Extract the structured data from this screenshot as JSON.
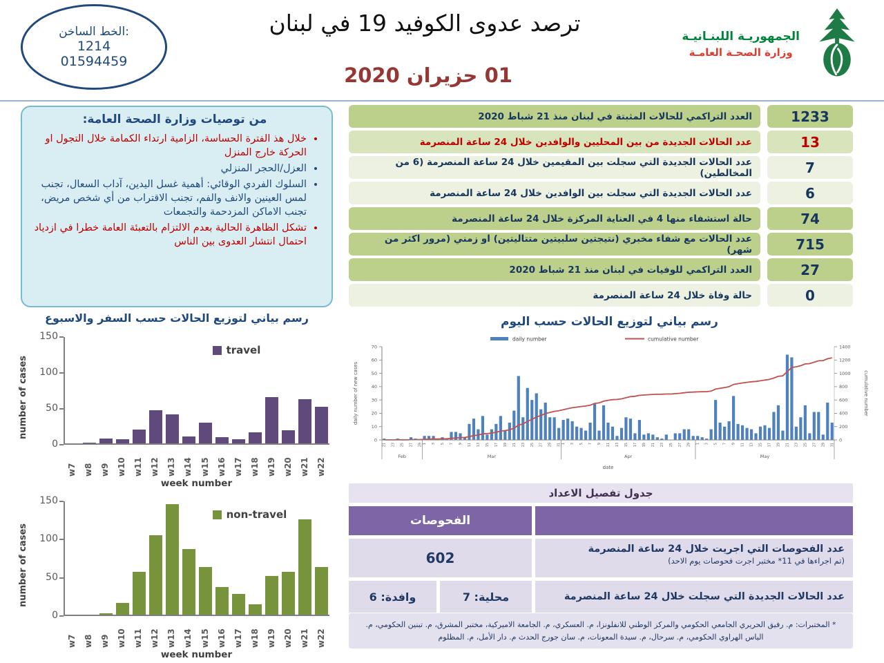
{
  "header": {
    "hotline": {
      "label": "الخط الساخن:",
      "num1": "1214",
      "num2": "01594459"
    },
    "title": "ترصد عدوى الكوفيد 19 في لبنان",
    "date": "01 حزيران 2020",
    "ministry": {
      "line1": "الجمهوريـة اللبنـانيـة",
      "line2": "وزارة الصحـة العامـة"
    }
  },
  "recommendations": {
    "title": "من توصيات وزارة الصحة العامة:",
    "items": [
      {
        "text": "خلال هذ الفترة الحساسة، الزامية ارتداء الكمامة خلال التجول او الحركة خارج المنزل",
        "tone": "red"
      },
      {
        "text": "العزل/الحجر المنزلي",
        "tone": "blue"
      },
      {
        "text": "السلوك الفردي الوقائي: أهمية غسل اليدين، آداب السعال، تجنب لمس العينين والانف والفم، تجنب الاقتراب من أي شخص مريض، تجنب الاماكن المزدحمة والتجمعات",
        "tone": "blue"
      },
      {
        "text": "تشكل الظاهرة الحالية بعدم الالتزام بالتعبئة العامة خطرا في ازدياد احتمال انتشار العدوى بين الناس",
        "tone": "red"
      }
    ]
  },
  "stats": {
    "rows": [
      {
        "label": "العدد التراكمي للحالات المثبتة في لبنان منذ 21 شباط 2020",
        "value": "1233",
        "shade": "dark",
        "tone": "navy"
      },
      {
        "label": "عدد الحالات الجديدة من بين المحليين والوافدين خلال 24 ساعة المنصرمة",
        "value": "13",
        "shade": "mid",
        "tone": "red"
      },
      {
        "label": "عدد الحالات الجديدة التي سجلت بين المقيمين خلال 24 ساعة المنصرمة (6 من المخالطين)",
        "value": "7",
        "shade": "pale",
        "tone": "navy"
      },
      {
        "label": "عدد الحالات الجديدة التي سجلت بين الوافدين خلال 24 ساعة المنصرمة",
        "value": "6",
        "shade": "pale",
        "tone": "navy"
      },
      {
        "label": "حالة استشفاء منها 4 في العناية المركزة خلال 24 ساعة المنصرمة",
        "value": "74",
        "shade": "dark",
        "tone": "navy"
      },
      {
        "label": "عدد الحالات مع شفاء مخبري (نتيجتين سلبيتين متتاليتين) او زمني (مرور اكثر من شهر)",
        "value": "715",
        "shade": "dark",
        "tone": "navy"
      },
      {
        "label": "العدد التراكمي للوفيات في لبنان منذ 21 شباط 2020",
        "value": "27",
        "shade": "dark",
        "tone": "navy"
      },
      {
        "label": "حالة وفاة خلال 24 ساعة المنصرمة",
        "value": "0",
        "shade": "pale",
        "tone": "navy"
      }
    ]
  },
  "tests_table": {
    "title": "جدول تفصيل الاعداد",
    "header": "الفحوصات",
    "row1": {
      "value": "602",
      "label": "عدد الفحوصات التي اجريت خلال 24 ساعة المنصرمة",
      "sub": "(تم اجراءها في 11* مختبر اجرت فحوصات يوم الاحد)"
    },
    "row2": {
      "arrival": "وافدة: 6",
      "local": "محلية: 7",
      "label": "عدد الحالات الجديدة التي سجلت خلال 24 ساعة المنصرمة"
    }
  },
  "footnote": "* المختبرات: م. رفيق الحريري الجامعي الحكومي والمركز الوطني للانفلونزا، م. العسكري، م. الجامعة الاميركية، مختبر المشرق، م. تبنين الحكومي، م. الياس الهراوي الحكومي، م. سرحال، م. سيدة المعونات، م. سان جورج الحدث م. دار الأمل، م. المظلوم",
  "colors": {
    "brand_green": "#00843D",
    "brand_red": "#E03C31",
    "date_red": "#953735",
    "navy": "#1F497D",
    "travel_purple": "#604A7B",
    "non_travel_green": "#77933C",
    "daily_blue": "#4F81BD",
    "cumulative_red": "#C0504D",
    "row_dark_green": "#BCD08C",
    "row_mid_green": "#D7E4BC",
    "row_pale_green": "#ECF1E1",
    "table_purple": "#7E66A6",
    "table_lavender": "#DFDBEA"
  },
  "chart_data": [
    {
      "type": "bar",
      "title": "رسم بياني لتوزيع الحالات حسب السفر والاسبوع",
      "legend": "travel",
      "color": "#604A7B",
      "categories": [
        "w7",
        "w8",
        "w9",
        "w10",
        "w11",
        "w12",
        "w13",
        "w14",
        "w15",
        "w16",
        "w17",
        "w18",
        "w19",
        "w20",
        "w21",
        "w22"
      ],
      "values": [
        0,
        1,
        7,
        6,
        19,
        46,
        40,
        10,
        29,
        9,
        6,
        15,
        64,
        18,
        62,
        51
      ],
      "xlabel": "week number",
      "ylabel": "number of cases",
      "ylim": [
        0,
        150
      ],
      "yticks": [
        0,
        50,
        100,
        150
      ]
    },
    {
      "type": "bar",
      "title": "",
      "legend": "non-travel",
      "color": "#77933C",
      "categories": [
        "w7",
        "w8",
        "w9",
        "w10",
        "w11",
        "w12",
        "w13",
        "w14",
        "w15",
        "w16",
        "w17",
        "w18",
        "w19",
        "w20",
        "w21",
        "w22"
      ],
      "values": [
        0,
        0,
        2,
        15,
        56,
        104,
        145,
        86,
        62,
        36,
        27,
        14,
        51,
        56,
        125,
        62
      ],
      "xlabel": "week number",
      "ylabel": "number of cases",
      "ylim": [
        0,
        150
      ],
      "yticks": [
        0,
        50,
        100,
        150
      ]
    },
    {
      "type": "bar+line",
      "title": "رسم بياني لتوزيع الحالات حسب اليوم",
      "legend": [
        "daily number",
        "cumulative number"
      ],
      "bar_color": "#4F81BD",
      "line_color": "#C0504D",
      "xlabel": "date",
      "ylabel_left": "daily number of new cases",
      "ylabel_right": "cumulative number",
      "ylim_left": [
        0,
        70
      ],
      "ylim_right": [
        0,
        1400
      ],
      "months": [
        {
          "label": "Feb",
          "start_day": 21,
          "days": 9
        },
        {
          "label": "Mar",
          "start_day": 1,
          "days": 31
        },
        {
          "label": "Apr",
          "start_day": 1,
          "days": 30
        },
        {
          "label": "May",
          "start_day": 1,
          "days": 31
        }
      ],
      "daily_values": [
        1,
        0,
        0,
        1,
        0,
        0,
        2,
        1,
        0,
        3,
        3,
        3,
        1,
        2,
        1,
        6,
        6,
        5,
        2,
        12,
        16,
        8,
        18,
        4,
        8,
        12,
        18,
        7,
        13,
        22,
        48,
        17,
        39,
        30,
        35,
        23,
        28,
        17,
        17,
        9,
        15,
        16,
        14,
        10,
        9,
        7,
        13,
        27,
        7,
        26,
        13,
        10,
        3,
        9,
        17,
        16,
        5,
        15,
        4,
        5,
        4,
        2,
        1,
        4,
        0,
        5,
        5,
        8,
        8,
        3,
        3,
        2,
        1,
        8,
        30,
        13,
        10,
        14,
        33,
        12,
        11,
        9,
        8,
        5,
        10,
        11,
        9,
        21,
        26,
        7,
        64,
        62,
        10,
        17,
        26,
        5,
        21,
        21,
        4,
        28,
        13
      ],
      "cumulative_final": 1233
    }
  ]
}
